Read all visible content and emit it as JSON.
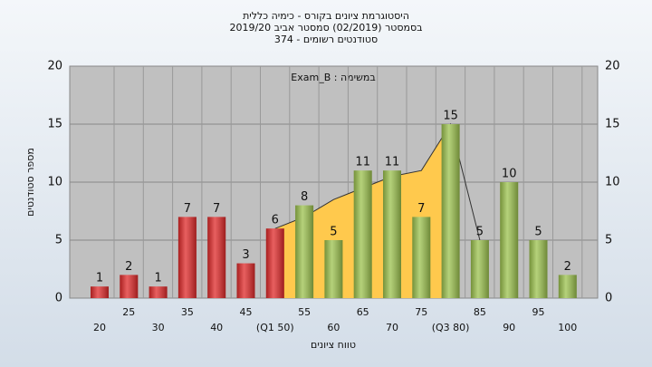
{
  "chart_data": {
    "type": "bar",
    "title": "היסטוגרמת ציונים בקורס - כימיה כללית",
    "subtitle": "בסמסטר (02/2019) סמסטר אביב 2019/20",
    "subtitle2": "סטודנטים רשומים - 374",
    "annotation": "במשימה : Exam_B",
    "xlabel": "טווח ציונים",
    "ylabel": "מספר סטודנטים",
    "categories": [
      "20",
      "25",
      "30",
      "35",
      "40",
      "45",
      "(Q1 50)",
      "55",
      "60",
      "65",
      "70",
      "75",
      "(Q3 80)",
      "85",
      "90",
      "95",
      "100"
    ],
    "values": [
      1,
      2,
      1,
      7,
      7,
      3,
      6,
      8,
      5,
      11,
      11,
      7,
      15,
      5,
      10,
      5,
      2
    ],
    "colors": [
      "#e02a2a",
      "#e02a2a",
      "#e02a2a",
      "#e02a2a",
      "#e02a2a",
      "#e02a2a",
      "#e02a2a",
      "#9cc24e",
      "#9cc24e",
      "#9cc24e",
      "#9cc24e",
      "#9cc24e",
      "#9cc24e",
      "#9cc24e",
      "#9cc24e",
      "#9cc24e",
      "#9cc24e"
    ],
    "area": {
      "color": "#ffc94d",
      "values": [
        null,
        null,
        null,
        null,
        null,
        null,
        6,
        7,
        8.5,
        9.5,
        10.5,
        11,
        15,
        5,
        null,
        null,
        null
      ]
    },
    "ylim": [
      0,
      20
    ],
    "yticks": [
      0,
      5,
      10,
      15,
      20
    ],
    "grid": true
  }
}
